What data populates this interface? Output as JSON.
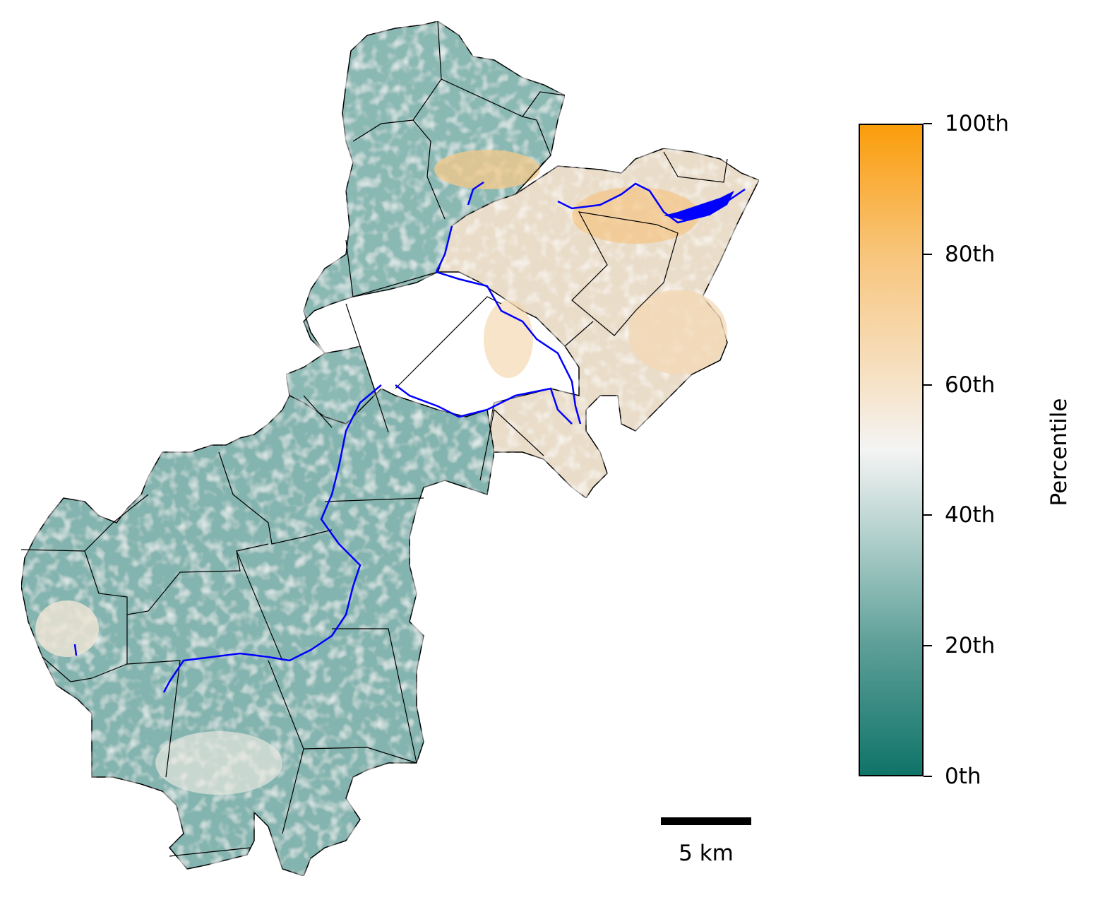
{
  "colorbar": {
    "title": "Percentile",
    "ticks": [
      {
        "label": "0th",
        "value": 0
      },
      {
        "label": "20th",
        "value": 20
      },
      {
        "label": "40th",
        "value": 40
      },
      {
        "label": "60th",
        "value": 60
      },
      {
        "label": "80th",
        "value": 80
      },
      {
        "label": "100th",
        "value": 100
      }
    ],
    "colors": {
      "low": "#0f7468",
      "mid": "#f4f4f4",
      "high": "#fb9d0b"
    }
  },
  "scale_bar": {
    "label": "5 km"
  },
  "map": {
    "base_color": "#86b6b1",
    "hot_color": "#f8cf95",
    "river_color": "#0000ff",
    "boundary_color": "#000000"
  }
}
